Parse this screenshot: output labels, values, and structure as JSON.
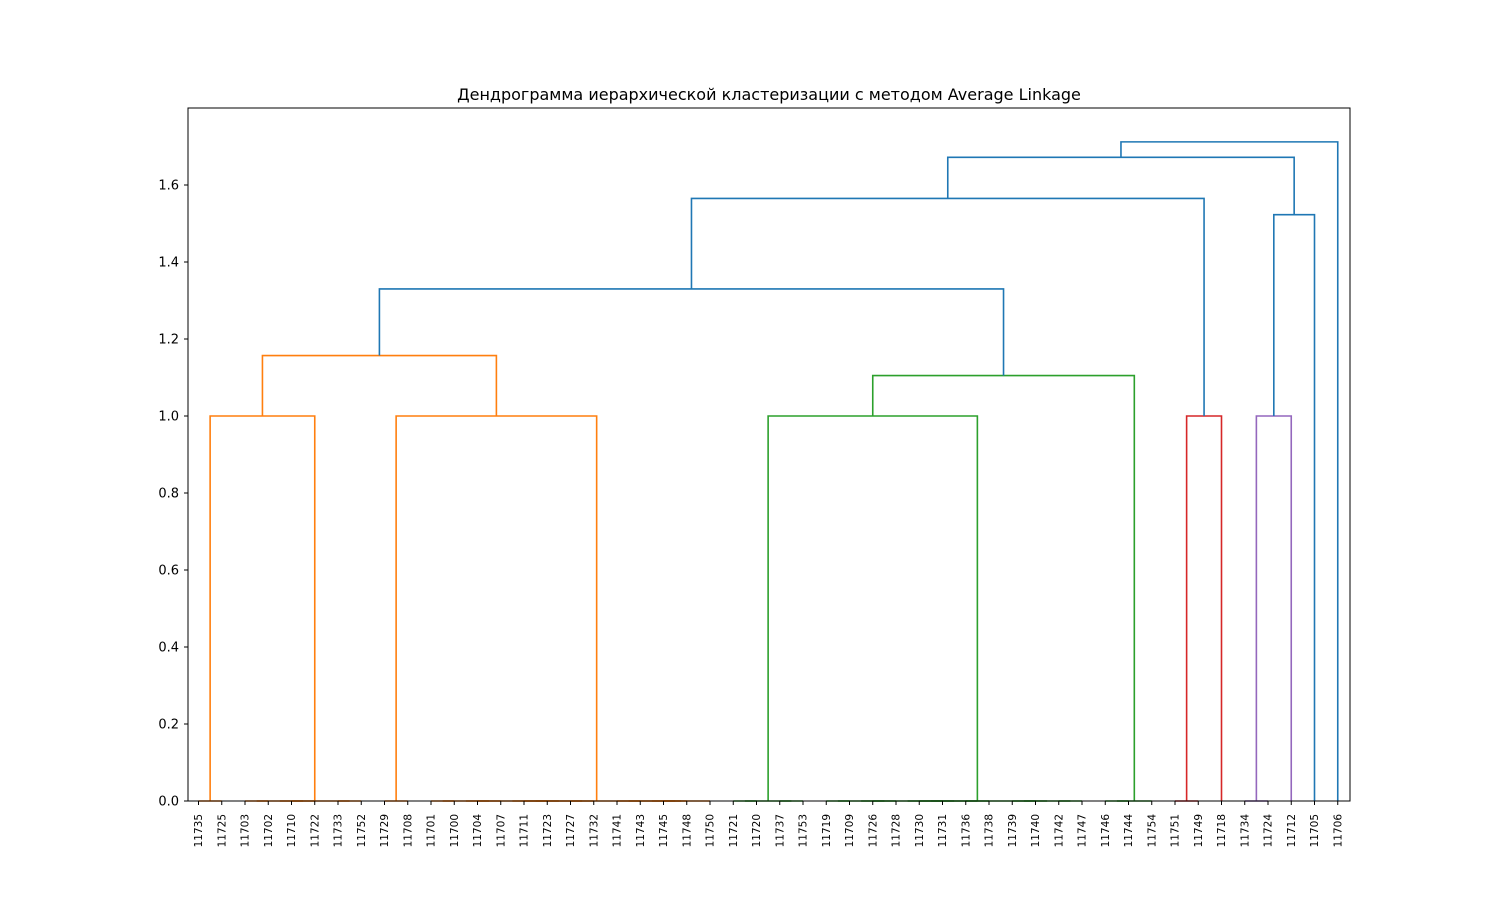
{
  "chart_data": {
    "type": "dendrogram",
    "title": "Дендрограмма иерархической кластеризации с методом Average Linkage",
    "xlabel": "",
    "ylabel": "",
    "ylim": [
      0,
      1.8
    ],
    "yticks": [
      0.0,
      0.2,
      0.4,
      0.6,
      0.8,
      1.0,
      1.2,
      1.4,
      1.6
    ],
    "ytick_labels": [
      "0.0",
      "0.2",
      "0.4",
      "0.6",
      "0.8",
      "1.0",
      "1.2",
      "1.4",
      "1.6"
    ],
    "leaves": [
      "11735",
      "11725",
      "11703",
      "11702",
      "11710",
      "11722",
      "11733",
      "11752",
      "11729",
      "11708",
      "11701",
      "11700",
      "11704",
      "11707",
      "11711",
      "11723",
      "11727",
      "11732",
      "11741",
      "11743",
      "11745",
      "11748",
      "11750",
      "11721",
      "11720",
      "11737",
      "11753",
      "11719",
      "11709",
      "11726",
      "11728",
      "11730",
      "11731",
      "11736",
      "11738",
      "11739",
      "11740",
      "11742",
      "11747",
      "11746",
      "11744",
      "11754",
      "11751",
      "11749",
      "11718",
      "11734",
      "11724",
      "11712",
      "11705",
      "11706"
    ],
    "colors": {
      "cluster_orange": "#ff7f0e",
      "cluster_green": "#2ca02c",
      "cluster_red": "#d62728",
      "cluster_purple": "#9467bd",
      "above_threshold": "#1f77b4"
    },
    "links": [
      {
        "name": "link-11735-11725",
        "color": "#ff7f0e",
        "left": {
          "leaf": 0
        },
        "right": {
          "leaf": 1
        },
        "height": 0.0
      },
      {
        "name": "link-11703-11702",
        "color": "#ff7f0e",
        "left": {
          "leaf": 2
        },
        "right": {
          "leaf": 3
        },
        "height": 0.0
      },
      {
        "name": "link-11710-11722",
        "color": "#ff7f0e",
        "left": {
          "leaf": 4
        },
        "right": {
          "leaf": 5
        },
        "height": 0.0
      },
      {
        "name": "link-11733-11752",
        "color": "#ff7f0e",
        "left": {
          "leaf": 6
        },
        "right": {
          "leaf": 7
        },
        "height": 0.0
      },
      {
        "name": "link-11703-11722",
        "color": "#ff7f0e",
        "left": {
          "link": 1
        },
        "right": {
          "link": 2
        },
        "height": 0.0
      },
      {
        "name": "link-11703-11752",
        "color": "#ff7f0e",
        "left": {
          "link": 4
        },
        "right": {
          "link": 3
        },
        "height": 0.0
      },
      {
        "name": "link-cluster-a",
        "color": "#ff7f0e",
        "left": {
          "link": 0
        },
        "right": {
          "link": 5
        },
        "height": 1.0
      },
      {
        "name": "link-11729-11708",
        "color": "#ff7f0e",
        "left": {
          "leaf": 8
        },
        "right": {
          "leaf": 9
        },
        "height": 0.0
      },
      {
        "name": "link-11701-11700",
        "color": "#ff7f0e",
        "left": {
          "leaf": 10
        },
        "right": {
          "leaf": 11
        },
        "height": 0.0
      },
      {
        "name": "link-11704-11707",
        "color": "#ff7f0e",
        "left": {
          "leaf": 12
        },
        "right": {
          "leaf": 13
        },
        "height": 0.0
      },
      {
        "name": "link-11711-11723",
        "color": "#ff7f0e",
        "left": {
          "leaf": 14
        },
        "right": {
          "leaf": 15
        },
        "height": 0.0
      },
      {
        "name": "link-11727-11732",
        "color": "#ff7f0e",
        "left": {
          "leaf": 16
        },
        "right": {
          "leaf": 17
        },
        "height": 0.0
      },
      {
        "name": "link-11741-11743",
        "color": "#ff7f0e",
        "left": {
          "leaf": 18
        },
        "right": {
          "leaf": 19
        },
        "height": 0.0
      },
      {
        "name": "link-11745-11748",
        "color": "#ff7f0e",
        "left": {
          "leaf": 20
        },
        "right": {
          "leaf": 21
        },
        "height": 0.0
      },
      {
        "name": "link-11701-11707",
        "color": "#ff7f0e",
        "left": {
          "link": 8
        },
        "right": {
          "link": 9
        },
        "height": 0.0
      },
      {
        "name": "link-11711-11732",
        "color": "#ff7f0e",
        "left": {
          "link": 10
        },
        "right": {
          "link": 11
        },
        "height": 0.0
      },
      {
        "name": "link-11741-11748",
        "color": "#ff7f0e",
        "left": {
          "link": 12
        },
        "right": {
          "link": 13
        },
        "height": 0.0
      },
      {
        "name": "link-11701-11732",
        "color": "#ff7f0e",
        "left": {
          "link": 14
        },
        "right": {
          "link": 15
        },
        "height": 0.0
      },
      {
        "name": "link-11741-11750",
        "color": "#ff7f0e",
        "left": {
          "link": 16
        },
        "right": {
          "leaf": 22
        },
        "height": 0.0
      },
      {
        "name": "link-11701-11750",
        "color": "#ff7f0e",
        "left": {
          "link": 17
        },
        "right": {
          "link": 18
        },
        "height": 0.0
      },
      {
        "name": "link-cluster-b",
        "color": "#ff7f0e",
        "left": {
          "link": 7
        },
        "right": {
          "link": 19
        },
        "height": 1.0
      },
      {
        "name": "link-cluster-ab",
        "color": "#ff7f0e",
        "left": {
          "link": 6
        },
        "right": {
          "link": 20
        },
        "height": 1.157
      },
      {
        "name": "link-11721-11720",
        "color": "#2ca02c",
        "left": {
          "leaf": 23
        },
        "right": {
          "leaf": 24
        },
        "height": 0.0
      },
      {
        "name": "link-11737-11753",
        "color": "#2ca02c",
        "left": {
          "leaf": 25
        },
        "right": {
          "leaf": 26
        },
        "height": 0.0
      },
      {
        "name": "link-11721-11753",
        "color": "#2ca02c",
        "left": {
          "link": 22
        },
        "right": {
          "link": 23
        },
        "height": 0.0
      },
      {
        "name": "link-11719-11709",
        "color": "#2ca02c",
        "left": {
          "leaf": 27
        },
        "right": {
          "leaf": 28
        },
        "height": 0.0
      },
      {
        "name": "link-11726-11728",
        "color": "#2ca02c",
        "left": {
          "leaf": 29
        },
        "right": {
          "leaf": 30
        },
        "height": 0.0
      },
      {
        "name": "link-11730-11731",
        "color": "#2ca02c",
        "left": {
          "leaf": 31
        },
        "right": {
          "leaf": 32
        },
        "height": 0.0
      },
      {
        "name": "link-11736-11738",
        "color": "#2ca02c",
        "left": {
          "leaf": 33
        },
        "right": {
          "leaf": 34
        },
        "height": 0.0
      },
      {
        "name": "link-11739-11740",
        "color": "#2ca02c",
        "left": {
          "leaf": 35
        },
        "right": {
          "leaf": 36
        },
        "height": 0.0
      },
      {
        "name": "link-11742-11747",
        "color": "#2ca02c",
        "left": {
          "leaf": 37
        },
        "right": {
          "leaf": 38
        },
        "height": 0.0
      },
      {
        "name": "link-11719-11728",
        "color": "#2ca02c",
        "left": {
          "link": 25
        },
        "right": {
          "link": 26
        },
        "height": 0.0
      },
      {
        "name": "link-11730-11738",
        "color": "#2ca02c",
        "left": {
          "link": 27
        },
        "right": {
          "link": 28
        },
        "height": 0.0
      },
      {
        "name": "link-11739-11747",
        "color": "#2ca02c",
        "left": {
          "link": 29
        },
        "right": {
          "link": 30
        },
        "height": 0.0
      },
      {
        "name": "link-11719-11738",
        "color": "#2ca02c",
        "left": {
          "link": 31
        },
        "right": {
          "link": 32
        },
        "height": 0.0
      },
      {
        "name": "link-11719-11747",
        "color": "#2ca02c",
        "left": {
          "link": 34
        },
        "right": {
          "link": 33
        },
        "height": 0.0
      },
      {
        "name": "link-cluster-c",
        "color": "#2ca02c",
        "left": {
          "link": 24
        },
        "right": {
          "link": 35
        },
        "height": 1.0
      },
      {
        "name": "link-11746-11744",
        "color": "#2ca02c",
        "left": {
          "leaf": 39
        },
        "right": {
          "leaf": 40
        },
        "height": 0.0
      },
      {
        "name": "link-11746-11754",
        "color": "#2ca02c",
        "left": {
          "link": 37
        },
        "right": {
          "leaf": 41
        },
        "height": 0.0
      },
      {
        "name": "link-cluster-cd",
        "color": "#2ca02c",
        "left": {
          "link": 36
        },
        "right": {
          "link": 38
        },
        "height": 1.105
      },
      {
        "name": "link-above-1",
        "color": "#1f77b4",
        "left": {
          "link": 21
        },
        "right": {
          "link": 39
        },
        "height": 1.33
      },
      {
        "name": "link-11751-11749",
        "color": "#d62728",
        "left": {
          "leaf": 42
        },
        "right": {
          "leaf": 43
        },
        "height": 0.0
      },
      {
        "name": "link-cluster-e",
        "color": "#d62728",
        "left": {
          "link": 41
        },
        "right": {
          "leaf": 44
        },
        "height": 1.0
      },
      {
        "name": "link-above-2",
        "color": "#1f77b4",
        "left": {
          "link": 40
        },
        "right": {
          "link": 42
        },
        "height": 1.565
      },
      {
        "name": "link-11734-11724",
        "color": "#9467bd",
        "left": {
          "leaf": 45
        },
        "right": {
          "leaf": 46
        },
        "height": 0.0
      },
      {
        "name": "link-cluster-f",
        "color": "#9467bd",
        "left": {
          "link": 44
        },
        "right": {
          "leaf": 47
        },
        "height": 1.0
      },
      {
        "name": "link-above-3",
        "color": "#1f77b4",
        "left": {
          "link": 45
        },
        "right": {
          "leaf": 48
        },
        "height": 1.523
      },
      {
        "name": "link-above-4",
        "color": "#1f77b4",
        "left": {
          "link": 43
        },
        "right": {
          "link": 46
        },
        "height": 1.672
      },
      {
        "name": "link-above-5",
        "color": "#1f77b4",
        "left": {
          "link": 47
        },
        "right": {
          "leaf": 49
        },
        "height": 1.712
      }
    ]
  }
}
